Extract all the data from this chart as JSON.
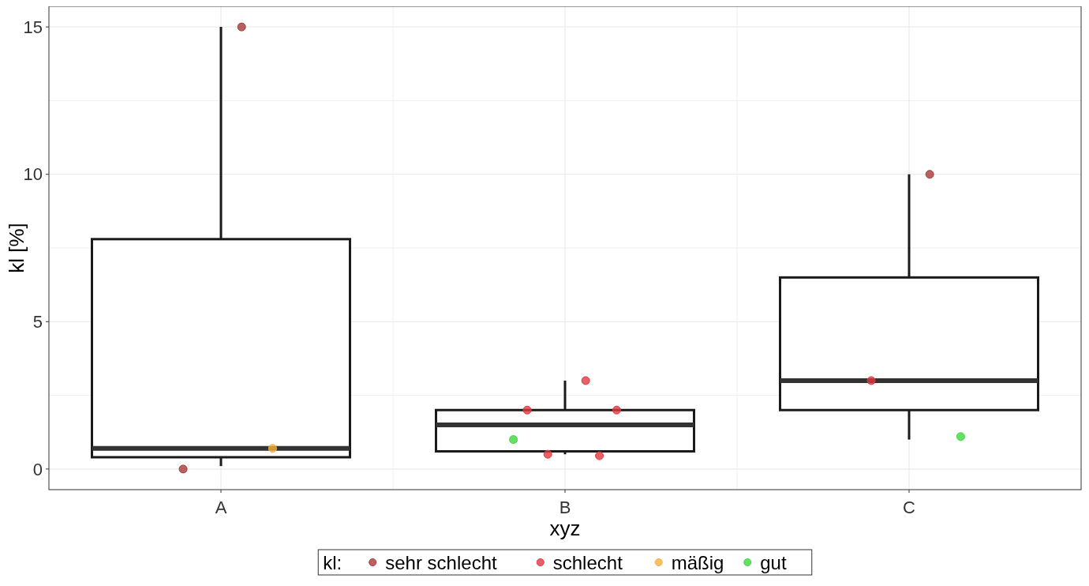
{
  "chart_data": {
    "type": "box",
    "xlabel": "xyz",
    "ylabel": "kl [%]",
    "legend_title": "kl:",
    "categories": [
      "A",
      "B",
      "C"
    ],
    "boxes": [
      {
        "low": 0.1,
        "q1": 0.4,
        "median": 0.7,
        "q3": 7.8,
        "high": 15
      },
      {
        "low": 0.5,
        "q1": 0.6,
        "median": 1.5,
        "q3": 2,
        "high": 3
      },
      {
        "low": 1,
        "q1": 2,
        "median": 3,
        "q3": 6.5,
        "high": 10
      }
    ],
    "series": [
      {
        "name": "sehr schlecht",
        "type": "scatter",
        "color": "#a83a3a",
        "x": [
          "A",
          "A",
          "C"
        ],
        "values": [
          15,
          0,
          10
        ]
      },
      {
        "name": "schlecht",
        "type": "scatter",
        "color": "#e0393e",
        "x": [
          "B",
          "B",
          "B",
          "B",
          "B",
          "C"
        ],
        "values": [
          3,
          2,
          2,
          0.5,
          0.45,
          3
        ]
      },
      {
        "name": "mäßig",
        "type": "scatter",
        "color": "#f5b041",
        "x": [
          "A"
        ],
        "values": [
          0.7
        ]
      },
      {
        "name": "gut",
        "type": "scatter",
        "color": "#3fd83f",
        "x": [
          "B",
          "C"
        ],
        "values": [
          1,
          1.1
        ]
      }
    ],
    "ylim": [
      -0.7,
      15.7
    ],
    "yticks": [
      0,
      5,
      10,
      15
    ],
    "grid": true,
    "legend": "bottom",
    "marker": "circle"
  }
}
